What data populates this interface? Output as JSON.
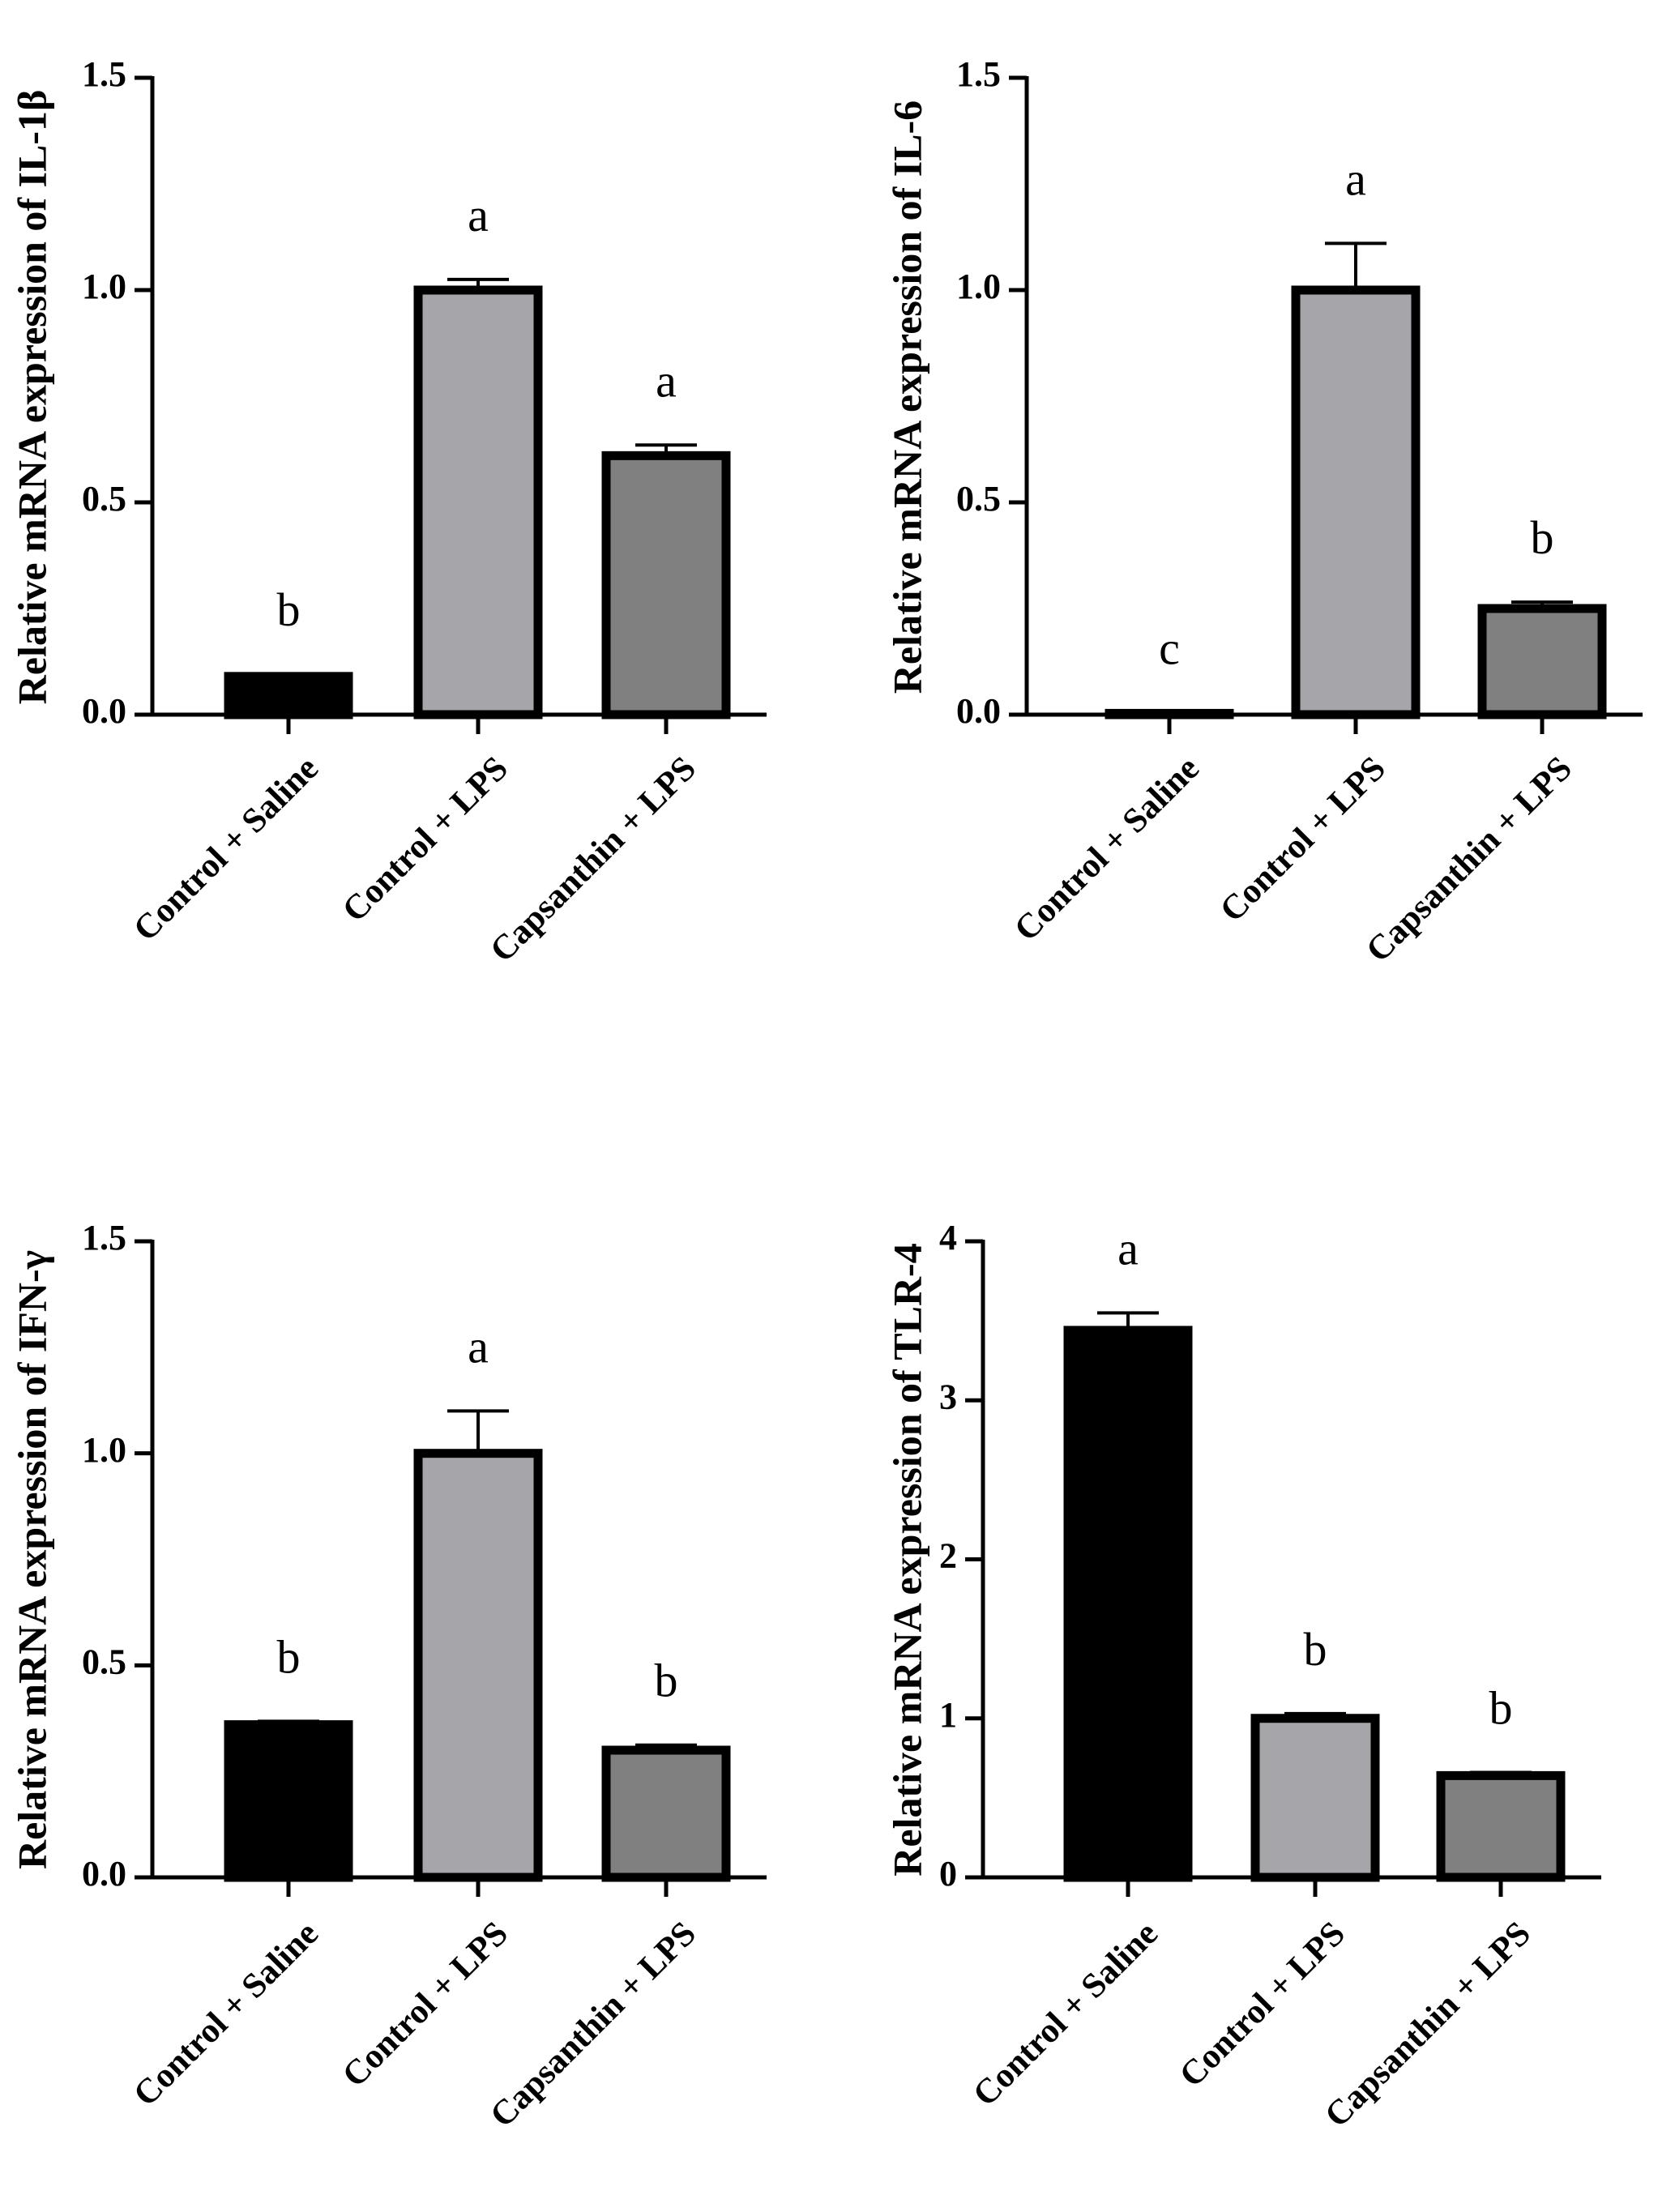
{
  "chart_data": [
    {
      "type": "bar",
      "panel": "il1b",
      "ylabel": "Relative mRNA expression of IL-1β",
      "categories": [
        "Control + Saline",
        "Control + LPS",
        "Capsanthin + LPS"
      ],
      "values": [
        0.09,
        1.0,
        0.61
      ],
      "errors": [
        0.005,
        0.025,
        0.025
      ],
      "significance": [
        "b",
        "a",
        "a"
      ],
      "bar_colors": [
        "#000000",
        "#a5a5aa",
        "#808080"
      ],
      "ylim": [
        0,
        1.5
      ],
      "yticks": [
        0.0,
        0.5,
        1.0,
        1.5
      ],
      "ytick_labels": [
        "0.0",
        "0.5",
        "1.0",
        "1.5"
      ]
    },
    {
      "type": "bar",
      "panel": "il6",
      "ylabel": "Relative mRNA expression of IL-6",
      "categories": [
        "Control + Saline",
        "Control + LPS",
        "Capsanthin + LPS"
      ],
      "values": [
        0.003,
        1.0,
        0.25
      ],
      "errors": [
        0.002,
        0.11,
        0.015
      ],
      "significance": [
        "c",
        "a",
        "b"
      ],
      "bar_colors": [
        "#000000",
        "#a5a5aa",
        "#808080"
      ],
      "ylim": [
        0,
        1.5
      ],
      "yticks": [
        0.0,
        0.5,
        1.0,
        1.5
      ],
      "ytick_labels": [
        "0.0",
        "0.5",
        "1.0",
        "1.5"
      ]
    },
    {
      "type": "bar",
      "panel": "ifng",
      "ylabel": "Relative mRNA expression of IFN-γ",
      "categories": [
        "Control + Saline",
        "Control + LPS",
        "Capsanthin + LPS"
      ],
      "values": [
        0.36,
        1.0,
        0.3
      ],
      "errors": [
        0.008,
        0.1,
        0.012
      ],
      "significance": [
        "b",
        "a",
        "b"
      ],
      "bar_colors": [
        "#000000",
        "#a5a5aa",
        "#808080"
      ],
      "ylim": [
        0,
        1.5
      ],
      "yticks": [
        0.0,
        0.5,
        1.0,
        1.5
      ],
      "ytick_labels": [
        "0.0",
        "0.5",
        "1.0",
        "1.5"
      ]
    },
    {
      "type": "bar",
      "panel": "tlr4",
      "ylabel": "Relative mRNA expression of TLR-4",
      "categories": [
        "Control + Saline",
        "Control + LPS",
        "Capsanthin + LPS"
      ],
      "values": [
        3.44,
        1.0,
        0.64
      ],
      "errors": [
        0.11,
        0.03,
        0.02
      ],
      "significance": [
        "a",
        "b",
        "b"
      ],
      "bar_colors": [
        "#000000",
        "#a5a5aa",
        "#808080"
      ],
      "ylim": [
        0,
        4
      ],
      "yticks": [
        0,
        1,
        2,
        3,
        4
      ],
      "ytick_labels": [
        "0",
        "1",
        "2",
        "3",
        "4"
      ]
    }
  ]
}
